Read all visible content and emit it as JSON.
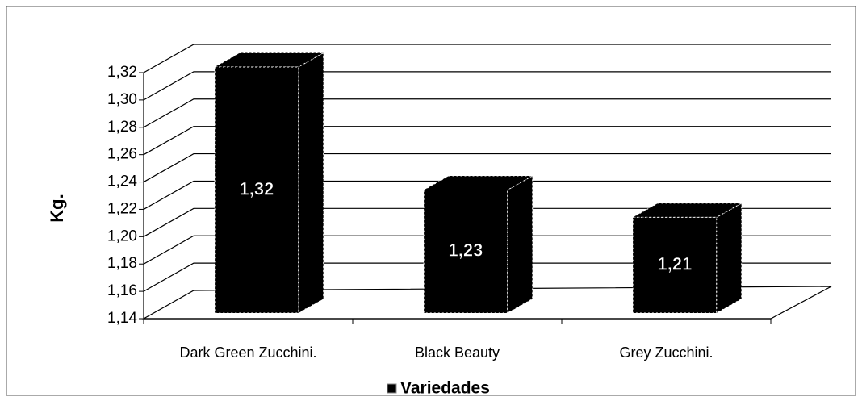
{
  "chart_data": {
    "type": "bar3d",
    "y_label": "Kg.",
    "categories": [
      "Dark Green Zucchini.",
      "Black Beauty",
      "Grey Zucchini."
    ],
    "series": [
      {
        "name": "Variedades",
        "color": "#000000",
        "values": [
          1.32,
          1.23,
          1.21
        ],
        "value_labels": [
          "1,32",
          "1,23",
          "1,21"
        ]
      }
    ],
    "ylim": [
      1.14,
      1.32
    ],
    "yticks": [
      {
        "value": 1.14,
        "label": "1,14"
      },
      {
        "value": 1.16,
        "label": "1,16"
      },
      {
        "value": 1.18,
        "label": "1,18"
      },
      {
        "value": 1.2,
        "label": "1,20"
      },
      {
        "value": 1.22,
        "label": "1,22"
      },
      {
        "value": 1.24,
        "label": "1,24"
      },
      {
        "value": 1.26,
        "label": "1,26"
      },
      {
        "value": 1.28,
        "label": "1,28"
      },
      {
        "value": 1.3,
        "label": "1,30"
      },
      {
        "value": 1.32,
        "label": "1,32"
      }
    ],
    "grid": true,
    "legend": "bottom"
  }
}
